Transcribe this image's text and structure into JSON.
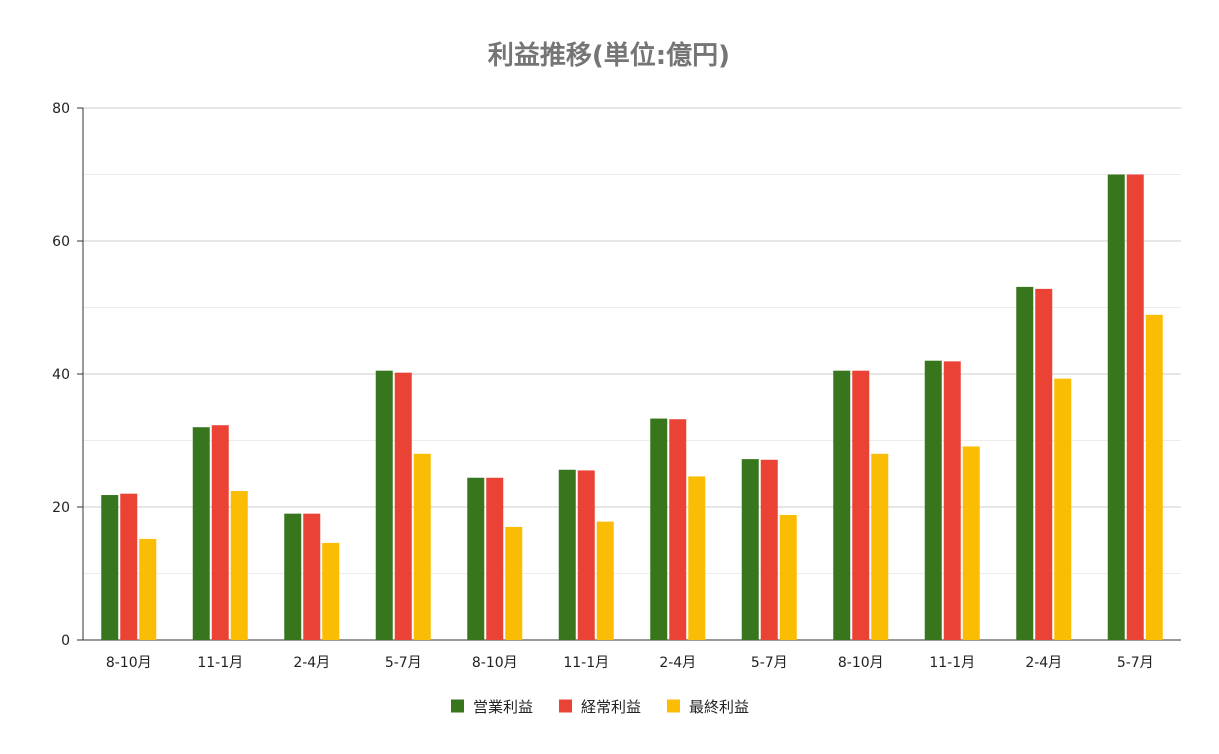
{
  "chart_data": {
    "type": "bar",
    "title": "利益推移(単位:億円)",
    "categories": [
      "8-10月",
      "11-1月",
      "2-4月",
      "5-7月",
      "8-10月",
      "11-1月",
      "2-4月",
      "5-7月",
      "8-10月",
      "11-1月",
      "2-4月",
      "5-7月"
    ],
    "series": [
      {
        "name": "営業利益",
        "color": "#38761d",
        "values": [
          21.8,
          32.0,
          19.0,
          40.5,
          24.4,
          25.6,
          33.3,
          27.2,
          40.5,
          42.0,
          53.1,
          70.0
        ]
      },
      {
        "name": "経常利益",
        "color": "#ea4335",
        "values": [
          22.0,
          32.3,
          19.0,
          40.2,
          24.4,
          25.5,
          33.2,
          27.1,
          40.5,
          41.9,
          52.8,
          70.0
        ]
      },
      {
        "name": "最終利益",
        "color": "#fbbc04",
        "values": [
          15.2,
          22.4,
          14.6,
          28.0,
          17.0,
          17.8,
          24.6,
          18.8,
          28.0,
          29.1,
          39.3,
          48.9
        ]
      }
    ],
    "ylim": [
      0,
      80
    ],
    "yticks": [
      "0",
      "20",
      "40",
      "60",
      "80"
    ],
    "ytick_values": [
      0,
      20,
      40,
      60,
      80
    ],
    "minor_grid_values": [
      10,
      30,
      50,
      70
    ],
    "grid": true,
    "legend_position": "bottom",
    "xlabel": "",
    "ylabel": ""
  }
}
